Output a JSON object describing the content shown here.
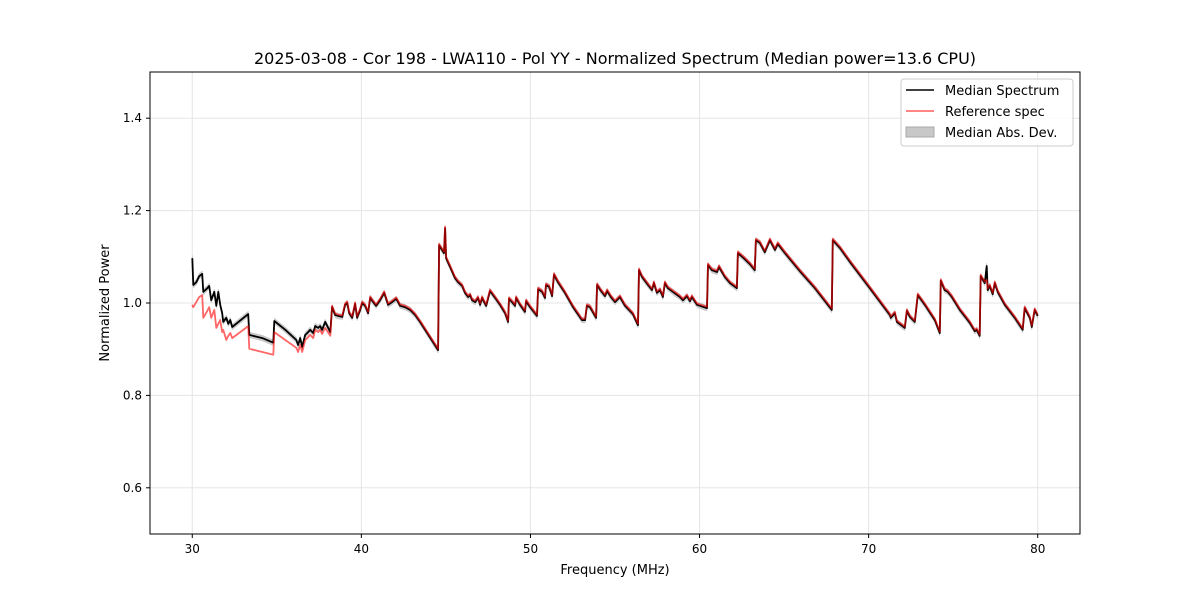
{
  "chart_data": {
    "type": "line",
    "title": "2025-03-08 - Cor 198 - LWA110 - Pol YY - Normalized Spectrum (Median power=13.6 CPU)",
    "xlabel": "Frequency (MHz)",
    "ylabel": "Normalized Power",
    "xlim": [
      27.5,
      82.5
    ],
    "ylim": [
      0.5,
      1.5
    ],
    "xticks": [
      30,
      40,
      50,
      60,
      70,
      80
    ],
    "xtick_labels": [
      "30",
      "40",
      "50",
      "60",
      "70",
      "80"
    ],
    "yticks": [
      0.6,
      0.8,
      1.0,
      1.2,
      1.4
    ],
    "ytick_labels": [
      "0.6",
      "0.8",
      "1.0",
      "1.2",
      "1.4"
    ],
    "grid": true,
    "legend_position": "top-right",
    "legend": [
      {
        "label": "Median Spectrum",
        "color": "#000000",
        "kind": "line"
      },
      {
        "label": "Reference spec",
        "color": "#ff5c5c",
        "kind": "line"
      },
      {
        "label": "Median Abs. Dev.",
        "color": "#c8c8c8",
        "kind": "patch"
      }
    ],
    "mad_halfwidth": 0.006,
    "columns": [
      "frequency_mhz",
      "median_spectrum",
      "reference_spec"
    ],
    "points": [
      [
        30.0,
        1.097,
        0.996
      ],
      [
        30.06,
        1.039,
        0.991
      ],
      [
        30.24,
        1.045,
        1.002
      ],
      [
        30.41,
        1.058,
        1.013
      ],
      [
        30.59,
        1.063,
        1.017
      ],
      [
        30.65,
        1.024,
        0.968
      ],
      [
        30.89,
        1.032,
        0.983
      ],
      [
        31.0,
        1.037,
        0.991
      ],
      [
        31.12,
        1.006,
        0.968
      ],
      [
        31.3,
        1.024,
        0.985
      ],
      [
        31.42,
        0.994,
        0.946
      ],
      [
        31.54,
        1.024,
        0.955
      ],
      [
        31.65,
        0.996,
        0.963
      ],
      [
        31.77,
        0.978,
        0.937
      ],
      [
        31.83,
        0.959,
        0.942
      ],
      [
        32.01,
        0.968,
        0.92
      ],
      [
        32.13,
        0.955,
        0.929
      ],
      [
        32.25,
        0.963,
        0.935
      ],
      [
        32.36,
        0.948,
        0.924
      ],
      [
        33.31,
        0.976,
        0.95
      ],
      [
        33.37,
        0.931,
        0.901
      ],
      [
        34.14,
        0.924,
        0.894
      ],
      [
        34.79,
        0.914,
        0.888
      ],
      [
        34.85,
        0.961,
        0.937
      ],
      [
        35.5,
        0.942,
        0.92
      ],
      [
        36.15,
        0.92,
        0.903
      ],
      [
        36.26,
        0.909,
        0.894
      ],
      [
        36.38,
        0.924,
        0.909
      ],
      [
        36.5,
        0.905,
        0.894
      ],
      [
        36.68,
        0.931,
        0.92
      ],
      [
        36.8,
        0.935,
        0.924
      ],
      [
        36.97,
        0.942,
        0.931
      ],
      [
        37.15,
        0.935,
        0.924
      ],
      [
        37.27,
        0.95,
        0.942
      ],
      [
        37.45,
        0.946,
        0.937
      ],
      [
        37.56,
        0.95,
        0.942
      ],
      [
        37.68,
        0.942,
        0.933
      ],
      [
        37.86,
        0.959,
        0.946
      ],
      [
        38.16,
        0.937,
        0.929
      ],
      [
        38.27,
        0.991,
        0.994
      ],
      [
        38.45,
        0.974,
        0.977
      ],
      [
        38.63,
        0.972,
        0.975
      ],
      [
        38.87,
        0.97,
        0.973
      ],
      [
        39.04,
        0.996,
        0.999
      ],
      [
        39.16,
        1.0,
        1.003
      ],
      [
        39.28,
        0.978,
        0.981
      ],
      [
        39.46,
        0.968,
        0.971
      ],
      [
        39.63,
        0.998,
        1.001
      ],
      [
        39.75,
        0.968,
        0.971
      ],
      [
        39.93,
        0.985,
        0.988
      ],
      [
        40.05,
        1.0,
        1.003
      ],
      [
        40.22,
        0.994,
        0.997
      ],
      [
        40.4,
        0.978,
        0.981
      ],
      [
        40.52,
        1.011,
        1.014
      ],
      [
        40.7,
        1.002,
        1.005
      ],
      [
        40.87,
        0.994,
        0.997
      ],
      [
        41.11,
        1.006,
        1.009
      ],
      [
        41.35,
        1.022,
        1.025
      ],
      [
        41.58,
        0.996,
        0.999
      ],
      [
        41.82,
        1.002,
        1.005
      ],
      [
        42.06,
        1.009,
        1.012
      ],
      [
        42.17,
        1.002,
        1.005
      ],
      [
        42.29,
        0.994,
        0.997
      ],
      [
        42.59,
        0.991,
        0.994
      ],
      [
        42.88,
        0.985,
        0.988
      ],
      [
        43.18,
        0.974,
        0.977
      ],
      [
        43.47,
        0.959,
        0.962
      ],
      [
        44.54,
        0.898,
        0.901
      ],
      [
        44.6,
        1.125,
        1.128
      ],
      [
        44.89,
        1.108,
        1.111
      ],
      [
        44.95,
        1.162,
        1.165
      ],
      [
        45.01,
        1.097,
        1.1
      ],
      [
        45.25,
        1.078,
        1.081
      ],
      [
        45.54,
        1.054,
        1.057
      ],
      [
        45.72,
        1.045,
        1.048
      ],
      [
        45.96,
        1.037,
        1.04
      ],
      [
        46.13,
        1.022,
        1.025
      ],
      [
        46.31,
        1.013,
        1.016
      ],
      [
        46.43,
        1.017,
        1.02
      ],
      [
        46.55,
        1.006,
        1.009
      ],
      [
        46.73,
        1.002,
        1.005
      ],
      [
        46.9,
        1.011,
        1.014
      ],
      [
        47.02,
        0.996,
        0.999
      ],
      [
        47.14,
        1.011,
        1.014
      ],
      [
        47.26,
        1.002,
        1.005
      ],
      [
        47.38,
        0.994,
        0.997
      ],
      [
        47.61,
        1.026,
        1.029
      ],
      [
        47.91,
        1.011,
        1.014
      ],
      [
        48.2,
        0.996,
        0.999
      ],
      [
        48.5,
        0.978,
        0.981
      ],
      [
        48.68,
        0.959,
        0.962
      ],
      [
        48.73,
        1.009,
        1.012
      ],
      [
        48.91,
        1.002,
        1.005
      ],
      [
        49.09,
        0.994,
        0.997
      ],
      [
        49.15,
        1.011,
        1.014
      ],
      [
        49.38,
        0.996,
        0.999
      ],
      [
        49.68,
        0.981,
        0.984
      ],
      [
        49.74,
        1.004,
        1.007
      ],
      [
        49.98,
        0.991,
        0.994
      ],
      [
        50.39,
        0.972,
        0.975
      ],
      [
        50.45,
        1.03,
        1.033
      ],
      [
        50.69,
        1.024,
        1.027
      ],
      [
        50.86,
        1.011,
        1.014
      ],
      [
        50.92,
        1.039,
        1.042
      ],
      [
        51.1,
        1.035,
        1.038
      ],
      [
        51.28,
        1.015,
        1.018
      ],
      [
        51.39,
        1.061,
        1.064
      ],
      [
        51.63,
        1.045,
        1.048
      ],
      [
        52.04,
        1.022,
        1.025
      ],
      [
        52.52,
        0.991,
        0.994
      ],
      [
        53.05,
        0.963,
        0.966
      ],
      [
        53.23,
        0.963,
        0.966
      ],
      [
        53.34,
        0.994,
        0.997
      ],
      [
        53.52,
        0.991,
        0.994
      ],
      [
        53.88,
        0.968,
        0.971
      ],
      [
        53.94,
        1.039,
        1.042
      ],
      [
        54.17,
        1.026,
        1.029
      ],
      [
        54.41,
        1.015,
        1.018
      ],
      [
        54.53,
        1.026,
        1.029
      ],
      [
        54.76,
        1.013,
        1.016
      ],
      [
        55.0,
        1.002,
        1.005
      ],
      [
        55.29,
        1.013,
        1.016
      ],
      [
        55.59,
        0.994,
        0.997
      ],
      [
        56.06,
        0.976,
        0.979
      ],
      [
        56.36,
        0.952,
        0.955
      ],
      [
        56.42,
        1.071,
        1.074
      ],
      [
        56.6,
        1.056,
        1.059
      ],
      [
        56.95,
        1.039,
        1.042
      ],
      [
        57.19,
        1.028,
        1.031
      ],
      [
        57.3,
        1.043,
        1.046
      ],
      [
        57.48,
        1.022,
        1.025
      ],
      [
        57.66,
        1.028,
        1.031
      ],
      [
        57.83,
        1.013,
        1.016
      ],
      [
        57.95,
        1.043,
        1.046
      ],
      [
        58.13,
        1.032,
        1.035
      ],
      [
        58.84,
        1.013,
        1.016
      ],
      [
        59.02,
        1.006,
        1.009
      ],
      [
        59.25,
        1.015,
        1.018
      ],
      [
        59.43,
        1.004,
        1.007
      ],
      [
        59.55,
        1.013,
        1.016
      ],
      [
        59.85,
        0.996,
        0.999
      ],
      [
        60.44,
        0.989,
        0.992
      ],
      [
        60.5,
        1.082,
        1.085
      ],
      [
        60.73,
        1.071,
        1.074
      ],
      [
        61.03,
        1.067,
        1.07
      ],
      [
        61.15,
        1.078,
        1.081
      ],
      [
        61.5,
        1.056,
        1.059
      ],
      [
        61.8,
        1.043,
        1.046
      ],
      [
        62.21,
        1.032,
        1.035
      ],
      [
        62.27,
        1.108,
        1.111
      ],
      [
        62.62,
        1.097,
        1.1
      ],
      [
        62.98,
        1.084,
        1.087
      ],
      [
        63.27,
        1.071,
        1.074
      ],
      [
        63.33,
        1.136,
        1.139
      ],
      [
        63.57,
        1.13,
        1.133
      ],
      [
        63.86,
        1.11,
        1.113
      ],
      [
        64.16,
        1.136,
        1.139
      ],
      [
        64.46,
        1.115,
        1.118
      ],
      [
        64.63,
        1.128,
        1.131
      ],
      [
        65.05,
        1.108,
        1.111
      ],
      [
        65.93,
        1.069,
        1.072
      ],
      [
        66.82,
        1.032,
        1.035
      ],
      [
        67.82,
        0.985,
        0.988
      ],
      [
        67.88,
        1.136,
        1.139
      ],
      [
        68.3,
        1.119,
        1.122
      ],
      [
        68.89,
        1.089,
        1.092
      ],
      [
        70.07,
        1.032,
        1.035
      ],
      [
        71.25,
        0.974,
        0.977
      ],
      [
        71.31,
        0.968,
        0.971
      ],
      [
        71.55,
        0.978,
        0.981
      ],
      [
        71.67,
        0.959,
        0.962
      ],
      [
        72.14,
        0.946,
        0.949
      ],
      [
        72.26,
        0.983,
        0.986
      ],
      [
        72.44,
        0.97,
        0.973
      ],
      [
        72.73,
        0.959,
        0.962
      ],
      [
        72.91,
        1.017,
        1.02
      ],
      [
        73.32,
        0.996,
        0.999
      ],
      [
        73.91,
        0.963,
        0.966
      ],
      [
        74.21,
        0.935,
        0.938
      ],
      [
        74.27,
        1.048,
        1.051
      ],
      [
        74.5,
        1.028,
        1.031
      ],
      [
        74.68,
        1.024,
        1.027
      ],
      [
        74.92,
        1.013,
        1.016
      ],
      [
        75.39,
        0.985,
        0.988
      ],
      [
        75.86,
        0.963,
        0.966
      ],
      [
        75.98,
        0.957,
        0.96
      ],
      [
        76.28,
        0.939,
        0.942
      ],
      [
        76.39,
        0.942,
        0.945
      ],
      [
        76.57,
        0.929,
        0.932
      ],
      [
        76.63,
        1.058,
        1.061
      ],
      [
        76.87,
        1.043,
        1.046
      ],
      [
        76.98,
        1.08,
        1.05
      ],
      [
        77.04,
        1.028,
        1.031
      ],
      [
        77.16,
        1.037,
        1.04
      ],
      [
        77.34,
        1.019,
        1.022
      ],
      [
        77.46,
        1.043,
        1.046
      ],
      [
        77.63,
        1.024,
        1.027
      ],
      [
        78.05,
        0.996,
        0.999
      ],
      [
        78.64,
        0.968,
        0.971
      ],
      [
        79.11,
        0.942,
        0.945
      ],
      [
        79.23,
        0.989,
        0.992
      ],
      [
        79.53,
        0.968,
        0.971
      ],
      [
        79.65,
        0.948,
        0.951
      ],
      [
        79.82,
        0.985,
        0.988
      ],
      [
        80.0,
        0.972,
        0.975
      ]
    ]
  }
}
